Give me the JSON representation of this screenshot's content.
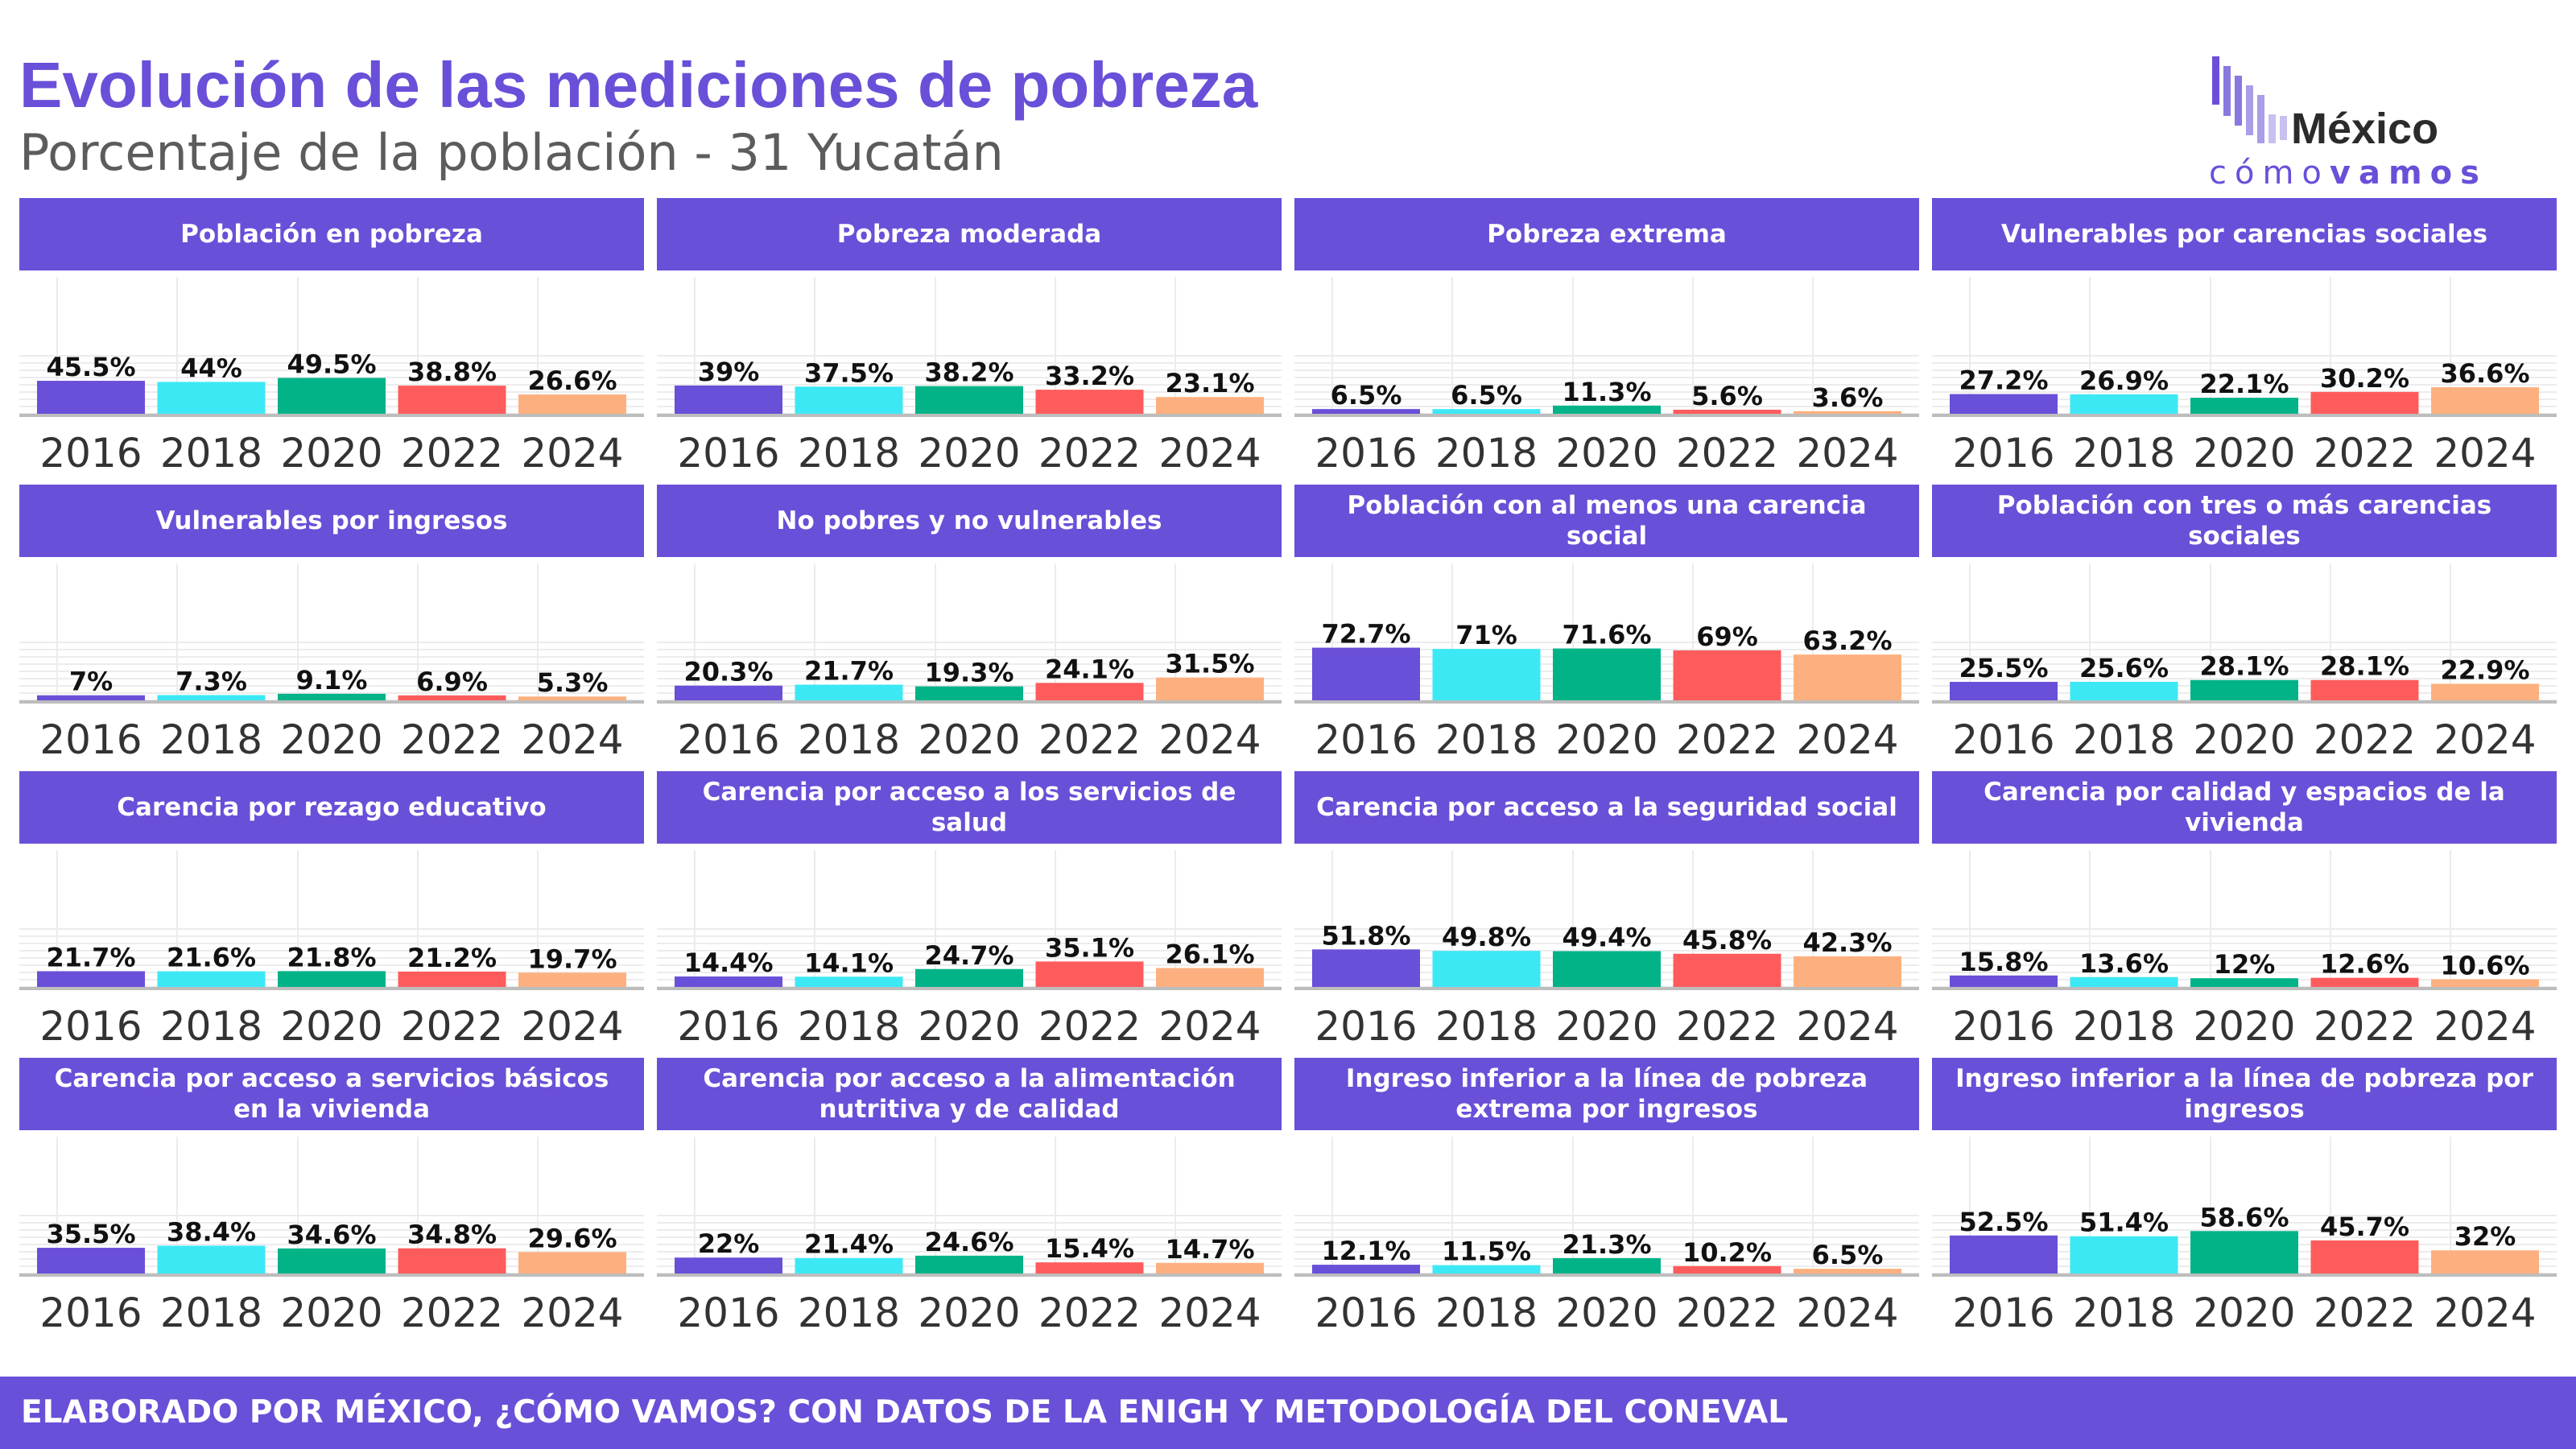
{
  "header": {
    "title": "Evolución de las mediciones de pobreza",
    "subtitle": "Porcentaje de la población - 31 Yucatán"
  },
  "logo": {
    "top_text": "México",
    "bottom_light": "cómo",
    "bottom_bold": "vamos"
  },
  "footer": {
    "text": "ELABORADO POR MÉXICO, ¿CÓMO VAMOS? CON DATOS DE LA ENIGH Y METODOLOGÍA DEL CONEVAL"
  },
  "colors": {
    "accent": "#6a4fd8",
    "series": [
      "#6a4fd8",
      "#3de8f5",
      "#03b388",
      "#fe5c5c",
      "#fdb07f"
    ],
    "logo_bars": [
      "#6a4fd8",
      "#8a78e0",
      "#a99ee8",
      "#c8c0f0"
    ]
  },
  "chart_data": [
    {
      "type": "bar",
      "title": "Población en pobreza",
      "categories": [
        "2016",
        "2018",
        "2020",
        "2022",
        "2024"
      ],
      "values": [
        45.5,
        44,
        49.5,
        38.8,
        26.6
      ],
      "labels": [
        "45.5%",
        "44%",
        "49.5%",
        "38.8%",
        "26.6%"
      ],
      "ylim": [
        0,
        100
      ],
      "grid": true
    },
    {
      "type": "bar",
      "title": "Pobreza moderada",
      "categories": [
        "2016",
        "2018",
        "2020",
        "2022",
        "2024"
      ],
      "values": [
        39,
        37.5,
        38.2,
        33.2,
        23.1
      ],
      "labels": [
        "39%",
        "37.5%",
        "38.2%",
        "33.2%",
        "23.1%"
      ],
      "ylim": [
        0,
        100
      ],
      "grid": true
    },
    {
      "type": "bar",
      "title": "Pobreza extrema",
      "categories": [
        "2016",
        "2018",
        "2020",
        "2022",
        "2024"
      ],
      "values": [
        6.5,
        6.5,
        11.3,
        5.6,
        3.6
      ],
      "labels": [
        "6.5%",
        "6.5%",
        "11.3%",
        "5.6%",
        "3.6%"
      ],
      "ylim": [
        0,
        100
      ],
      "grid": true
    },
    {
      "type": "bar",
      "title": "Vulnerables por carencias sociales",
      "categories": [
        "2016",
        "2018",
        "2020",
        "2022",
        "2024"
      ],
      "values": [
        27.2,
        26.9,
        22.1,
        30.2,
        36.6
      ],
      "labels": [
        "27.2%",
        "26.9%",
        "22.1%",
        "30.2%",
        "36.6%"
      ],
      "ylim": [
        0,
        100
      ],
      "grid": true
    },
    {
      "type": "bar",
      "title": "Vulnerables por ingresos",
      "categories": [
        "2016",
        "2018",
        "2020",
        "2022",
        "2024"
      ],
      "values": [
        7,
        7.3,
        9.1,
        6.9,
        5.3
      ],
      "labels": [
        "7%",
        "7.3%",
        "9.1%",
        "6.9%",
        "5.3%"
      ],
      "ylim": [
        0,
        100
      ],
      "grid": true
    },
    {
      "type": "bar",
      "title": "No pobres y no vulnerables",
      "categories": [
        "2016",
        "2018",
        "2020",
        "2022",
        "2024"
      ],
      "values": [
        20.3,
        21.7,
        19.3,
        24.1,
        31.5
      ],
      "labels": [
        "20.3%",
        "21.7%",
        "19.3%",
        "24.1%",
        "31.5%"
      ],
      "ylim": [
        0,
        100
      ],
      "grid": true
    },
    {
      "type": "bar",
      "title": "Población con al menos una carencia social",
      "categories": [
        "2016",
        "2018",
        "2020",
        "2022",
        "2024"
      ],
      "values": [
        72.7,
        71,
        71.6,
        69,
        63.2
      ],
      "labels": [
        "72.7%",
        "71%",
        "71.6%",
        "69%",
        "63.2%"
      ],
      "ylim": [
        0,
        100
      ],
      "grid": true
    },
    {
      "type": "bar",
      "title": "Población con tres o más carencias sociales",
      "categories": [
        "2016",
        "2018",
        "2020",
        "2022",
        "2024"
      ],
      "values": [
        25.5,
        25.6,
        28.1,
        28.1,
        22.9
      ],
      "labels": [
        "25.5%",
        "25.6%",
        "28.1%",
        "28.1%",
        "22.9%"
      ],
      "ylim": [
        0,
        100
      ],
      "grid": true
    },
    {
      "type": "bar",
      "title": "Carencia por rezago educativo",
      "categories": [
        "2016",
        "2018",
        "2020",
        "2022",
        "2024"
      ],
      "values": [
        21.7,
        21.6,
        21.8,
        21.2,
        19.7
      ],
      "labels": [
        "21.7%",
        "21.6%",
        "21.8%",
        "21.2%",
        "19.7%"
      ],
      "ylim": [
        0,
        100
      ],
      "grid": true
    },
    {
      "type": "bar",
      "title": "Carencia por acceso a los servicios de salud",
      "categories": [
        "2016",
        "2018",
        "2020",
        "2022",
        "2024"
      ],
      "values": [
        14.4,
        14.1,
        24.7,
        35.1,
        26.1
      ],
      "labels": [
        "14.4%",
        "14.1%",
        "24.7%",
        "35.1%",
        "26.1%"
      ],
      "ylim": [
        0,
        100
      ],
      "grid": true
    },
    {
      "type": "bar",
      "title": "Carencia por acceso a la seguridad social",
      "categories": [
        "2016",
        "2018",
        "2020",
        "2022",
        "2024"
      ],
      "values": [
        51.8,
        49.8,
        49.4,
        45.8,
        42.3
      ],
      "labels": [
        "51.8%",
        "49.8%",
        "49.4%",
        "45.8%",
        "42.3%"
      ],
      "ylim": [
        0,
        100
      ],
      "grid": true
    },
    {
      "type": "bar",
      "title": "Carencia por calidad y espacios de la vivienda",
      "categories": [
        "2016",
        "2018",
        "2020",
        "2022",
        "2024"
      ],
      "values": [
        15.8,
        13.6,
        12,
        12.6,
        10.6
      ],
      "labels": [
        "15.8%",
        "13.6%",
        "12%",
        "12.6%",
        "10.6%"
      ],
      "ylim": [
        0,
        100
      ],
      "grid": true
    },
    {
      "type": "bar",
      "title": "Carencia por acceso a servicios básicos en la vivienda",
      "categories": [
        "2016",
        "2018",
        "2020",
        "2022",
        "2024"
      ],
      "values": [
        35.5,
        38.4,
        34.6,
        34.8,
        29.6
      ],
      "labels": [
        "35.5%",
        "38.4%",
        "34.6%",
        "34.8%",
        "29.6%"
      ],
      "ylim": [
        0,
        100
      ],
      "grid": true
    },
    {
      "type": "bar",
      "title": "Carencia por acceso a la alimentación nutritiva y de calidad",
      "categories": [
        "2016",
        "2018",
        "2020",
        "2022",
        "2024"
      ],
      "values": [
        22,
        21.4,
        24.6,
        15.4,
        14.7
      ],
      "labels": [
        "22%",
        "21.4%",
        "24.6%",
        "15.4%",
        "14.7%"
      ],
      "ylim": [
        0,
        100
      ],
      "grid": true
    },
    {
      "type": "bar",
      "title": "Ingreso inferior a la línea de pobreza extrema por ingresos",
      "categories": [
        "2016",
        "2018",
        "2020",
        "2022",
        "2024"
      ],
      "values": [
        12.1,
        11.5,
        21.3,
        10.2,
        6.5
      ],
      "labels": [
        "12.1%",
        "11.5%",
        "21.3%",
        "10.2%",
        "6.5%"
      ],
      "ylim": [
        0,
        100
      ],
      "grid": true
    },
    {
      "type": "bar",
      "title": "Ingreso inferior a la línea de pobreza por ingresos",
      "categories": [
        "2016",
        "2018",
        "2020",
        "2022",
        "2024"
      ],
      "values": [
        52.5,
        51.4,
        58.6,
        45.7,
        32
      ],
      "labels": [
        "52.5%",
        "51.4%",
        "58.6%",
        "45.7%",
        "32%"
      ],
      "ylim": [
        0,
        100
      ],
      "grid": true
    }
  ]
}
